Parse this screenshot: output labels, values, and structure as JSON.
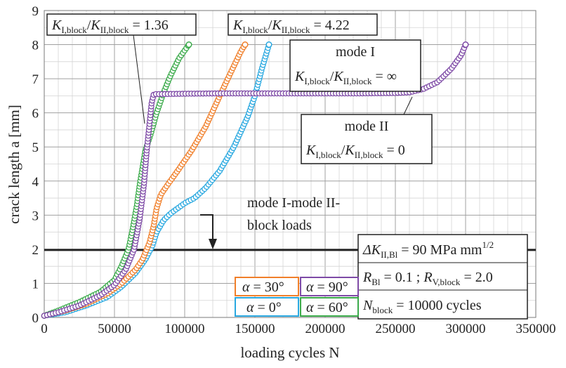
{
  "chart_data": {
    "type": "scatter",
    "xlabel": "loading cycles N",
    "ylabel": "crack length a [mm]",
    "xlim": [
      0,
      350000
    ],
    "ylim": [
      0,
      9
    ],
    "xticks": [
      0,
      50000,
      100000,
      150000,
      200000,
      250000,
      300000,
      350000
    ],
    "yticks": [
      0,
      1,
      2,
      3,
      4,
      5,
      6,
      7,
      8,
      9
    ],
    "grid": true,
    "series": [
      {
        "name": "α = 0°",
        "color": "#29a8e0",
        "points": [
          [
            0,
            0.05
          ],
          [
            15000,
            0.15
          ],
          [
            30000,
            0.35
          ],
          [
            45000,
            0.6
          ],
          [
            55000,
            0.9
          ],
          [
            65000,
            1.3
          ],
          [
            72000,
            1.7
          ],
          [
            77000,
            2.1
          ],
          [
            80000,
            2.5
          ],
          [
            85000,
            2.85
          ],
          [
            90000,
            3.05
          ],
          [
            100000,
            3.35
          ],
          [
            107000,
            3.5
          ],
          [
            115000,
            3.8
          ],
          [
            125000,
            4.3
          ],
          [
            135000,
            5.0
          ],
          [
            145000,
            5.9
          ],
          [
            150000,
            6.5
          ],
          [
            155000,
            7.3
          ],
          [
            160000,
            8.0
          ]
        ]
      },
      {
        "name": "α = 30°",
        "color": "#f07f2a",
        "points": [
          [
            0,
            0.05
          ],
          [
            15000,
            0.2
          ],
          [
            30000,
            0.4
          ],
          [
            45000,
            0.7
          ],
          [
            55000,
            1.0
          ],
          [
            65000,
            1.4
          ],
          [
            70000,
            1.7
          ],
          [
            75000,
            2.2
          ],
          [
            78000,
            2.7
          ],
          [
            80000,
            3.2
          ],
          [
            83000,
            3.6
          ],
          [
            88000,
            3.9
          ],
          [
            95000,
            4.3
          ],
          [
            105000,
            4.9
          ],
          [
            115000,
            5.6
          ],
          [
            125000,
            6.5
          ],
          [
            133000,
            7.2
          ],
          [
            140000,
            7.8
          ],
          [
            143000,
            8.0
          ]
        ]
      },
      {
        "name": "α = 60°",
        "color": "#3aaa4a",
        "points": [
          [
            0,
            0.05
          ],
          [
            10000,
            0.2
          ],
          [
            25000,
            0.45
          ],
          [
            40000,
            0.75
          ],
          [
            50000,
            1.1
          ],
          [
            55000,
            1.5
          ],
          [
            60000,
            2.0
          ],
          [
            63000,
            2.6
          ],
          [
            66000,
            3.3
          ],
          [
            68000,
            3.9
          ],
          [
            70000,
            4.4
          ],
          [
            72000,
            4.9
          ],
          [
            76000,
            5.4
          ],
          [
            80000,
            6.0
          ],
          [
            85000,
            6.6
          ],
          [
            90000,
            7.1
          ],
          [
            96000,
            7.6
          ],
          [
            103000,
            8.0
          ]
        ]
      },
      {
        "name": "α = 90°",
        "color": "#7e4aa6",
        "points": [
          [
            0,
            0.05
          ],
          [
            10000,
            0.15
          ],
          [
            25000,
            0.35
          ],
          [
            40000,
            0.65
          ],
          [
            50000,
            0.95
          ],
          [
            58000,
            1.4
          ],
          [
            64000,
            2.0
          ],
          [
            68000,
            2.9
          ],
          [
            71000,
            3.9
          ],
          [
            73000,
            4.9
          ],
          [
            75000,
            5.7
          ],
          [
            76500,
            6.3
          ],
          [
            78000,
            6.55
          ],
          [
            85000,
            6.55
          ],
          [
            100000,
            6.56
          ],
          [
            125000,
            6.57
          ],
          [
            150000,
            6.57
          ],
          [
            175000,
            6.57
          ],
          [
            200000,
            6.57
          ],
          [
            225000,
            6.57
          ],
          [
            250000,
            6.58
          ],
          [
            260000,
            6.6
          ],
          [
            270000,
            6.7
          ],
          [
            280000,
            6.9
          ],
          [
            290000,
            7.3
          ],
          [
            297000,
            7.7
          ],
          [
            300000,
            8.0
          ]
        ]
      }
    ],
    "annotations": {
      "box1": {
        "K": "K",
        "s1": "I,block",
        "slash": "/",
        "s2": "II,block",
        "rest": " = 1.36"
      },
      "box2": {
        "K": "K",
        "s1": "I,block",
        "slash": "/",
        "s2": "II,block",
        "rest": " = 4.22"
      },
      "modeI": {
        "title": "mode I",
        "K": "K",
        "s1": "I,block",
        "slash": "/",
        "s2": "II,block",
        "rest": " = ∞"
      },
      "modeII": {
        "title": "mode II",
        "K": "K",
        "s1": "I,block",
        "slash": "/",
        "s2": "II,block",
        "rest": " = 0"
      },
      "block_line_value": 2,
      "block_label_1": "mode I-mode II-",
      "block_label_2": "block loads",
      "params": {
        "l1_pre": "ΔK",
        "l1_sub": "II,Bl",
        "l1_mid": " = 90 MPa mm",
        "l1_sup": "1/2",
        "l2_a": "R",
        "l2_a_sub": "Bl",
        "l2_mid": " = 0.1 ; ",
        "l2_b": "R",
        "l2_b_sub": "V,block",
        "l2_end": " = 2.0",
        "l3_a": "N",
        "l3_sub": "block",
        "l3_end": " = 10000 cycles"
      }
    },
    "legend": [
      {
        "alpha": "α",
        "text": " = 30°",
        "color": "#f07f2a"
      },
      {
        "alpha": "α",
        "text": " = 90°",
        "color": "#7e4aa6"
      },
      {
        "alpha": "α",
        "text": " = 0°",
        "color": "#29a8e0"
      },
      {
        "alpha": "α",
        "text": " = 60°",
        "color": "#3aaa4a"
      }
    ]
  }
}
